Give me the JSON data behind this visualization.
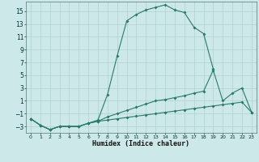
{
  "xlabel": "Humidex (Indice chaleur)",
  "background_color": "#cde8e8",
  "grid_color": "#b0d0d0",
  "line_color": "#2a7a6a",
  "xlim": [
    -0.5,
    23.5
  ],
  "ylim": [
    -4.0,
    16.5
  ],
  "xticks": [
    0,
    1,
    2,
    3,
    4,
    5,
    6,
    7,
    8,
    9,
    10,
    11,
    12,
    13,
    14,
    15,
    16,
    17,
    18,
    19,
    20,
    21,
    22,
    23
  ],
  "yticks": [
    -3,
    -1,
    1,
    3,
    5,
    7,
    9,
    11,
    13,
    15
  ],
  "series1_x": [
    0,
    1,
    2,
    3,
    4,
    5,
    6,
    7,
    8,
    9,
    10,
    11,
    12,
    13,
    14,
    15,
    16,
    17,
    18,
    19,
    20,
    21,
    22,
    23
  ],
  "series1_y": [
    -1.8,
    -2.8,
    -3.5,
    -3.0,
    -3.0,
    -3.0,
    -2.5,
    -2.0,
    2.0,
    8.0,
    13.5,
    14.5,
    15.2,
    15.6,
    16.0,
    15.2,
    14.8,
    12.5,
    11.5,
    6.0,
    null,
    null,
    null,
    null
  ],
  "series2_x": [
    0,
    1,
    2,
    3,
    4,
    5,
    6,
    7,
    8,
    9,
    10,
    11,
    12,
    13,
    14,
    15,
    16,
    17,
    18,
    19,
    20,
    21,
    22,
    23
  ],
  "series2_y": [
    -1.8,
    -2.8,
    -3.5,
    -3.0,
    -3.0,
    -3.0,
    -2.5,
    -2.2,
    -1.5,
    -1.0,
    -0.5,
    0.0,
    0.5,
    1.0,
    1.2,
    1.5,
    1.8,
    2.2,
    2.5,
    5.8,
    1.0,
    2.2,
    3.0,
    -0.8
  ],
  "series3_x": [
    0,
    1,
    2,
    3,
    4,
    5,
    6,
    7,
    8,
    9,
    10,
    11,
    12,
    13,
    14,
    15,
    16,
    17,
    18,
    19,
    20,
    21,
    22,
    23
  ],
  "series3_y": [
    -1.8,
    -2.8,
    -3.5,
    -3.0,
    -3.0,
    -3.0,
    -2.5,
    -2.2,
    -2.0,
    -1.8,
    -1.6,
    -1.4,
    -1.2,
    -1.0,
    -0.8,
    -0.6,
    -0.4,
    -0.2,
    0.0,
    0.2,
    0.4,
    0.6,
    0.8,
    -0.8
  ]
}
